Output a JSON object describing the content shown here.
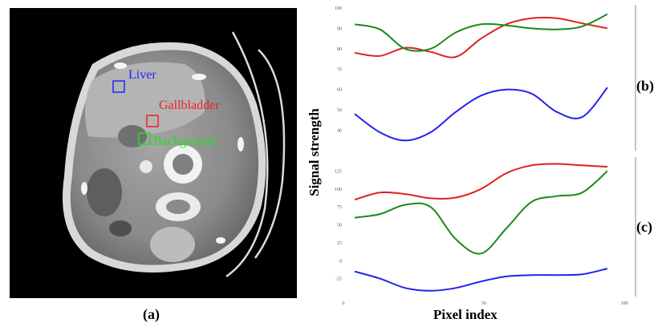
{
  "panels": {
    "a": "(a)",
    "b": "(b)",
    "c": "(c)"
  },
  "ct_image": {
    "roi_labels": [
      "Liver",
      "Gallbladder",
      "Background"
    ],
    "roi_colors": [
      "#2222ff",
      "#ee2222",
      "#22dd22"
    ]
  },
  "axes": {
    "ylabel": "Signal strength",
    "xlabel": "Pixel index"
  },
  "chart_data": [
    {
      "type": "line",
      "panel": "(b)",
      "x": [
        4,
        13,
        22,
        31,
        40,
        49,
        58,
        67,
        76,
        85,
        94
      ],
      "xlim": [
        0,
        100
      ],
      "ylim": [
        30,
        100
      ],
      "yticks": [
        40,
        50,
        60,
        70,
        80,
        90,
        100
      ],
      "series": [
        {
          "color": "#dd2222",
          "values": [
            78,
            76.5,
            80.5,
            78.5,
            76,
            85,
            92,
            95,
            95,
            92.5,
            90
          ]
        },
        {
          "color": "#1a8a1a",
          "values": [
            92,
            89.5,
            80,
            80,
            88,
            92,
            91.5,
            90,
            89.5,
            91,
            97
          ]
        },
        {
          "color": "#2222ee",
          "values": [
            48,
            39,
            35,
            39,
            49,
            57,
            60,
            58,
            49,
            46.5,
            61
          ]
        }
      ]
    },
    {
      "type": "line",
      "panel": "(c)",
      "x": [
        4,
        13,
        22,
        31,
        40,
        49,
        58,
        67,
        76,
        85,
        94
      ],
      "xlim": [
        0,
        100
      ],
      "xticks": [
        0,
        50,
        100
      ],
      "ylim": [
        -50,
        140
      ],
      "yticks": [
        -25,
        0,
        25,
        50,
        75,
        100,
        125
      ],
      "series": [
        {
          "color": "#dd2222",
          "values": [
            85,
            95,
            93,
            87,
            88,
            100,
            122,
            133,
            135,
            133,
            131
          ]
        },
        {
          "color": "#1a8a1a",
          "values": [
            60,
            65,
            78,
            75,
            30,
            10,
            45,
            82,
            90,
            95,
            125
          ]
        },
        {
          "color": "#2222ee",
          "values": [
            -15,
            -25,
            -38,
            -42,
            -38,
            -29,
            -22,
            -20,
            -20,
            -19,
            -11
          ]
        }
      ]
    }
  ]
}
